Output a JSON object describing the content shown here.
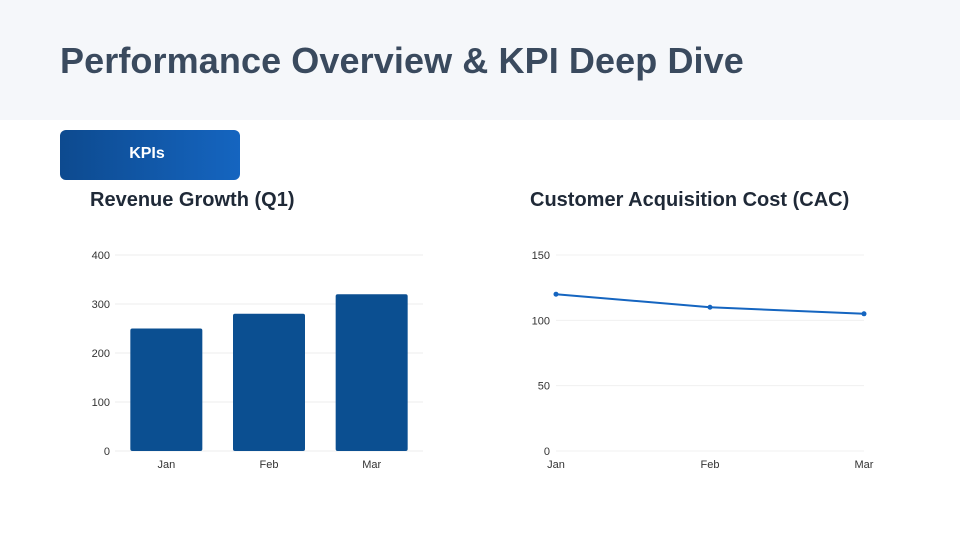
{
  "header": {
    "title": "Performance Overview & KPI Deep Dive"
  },
  "section": {
    "label": "KPIs"
  },
  "colors": {
    "primary": "#0b4f91",
    "line": "#1565c0",
    "header_bg": "#f5f7fa",
    "title_text": "#3a4a5e"
  },
  "chart_data": [
    {
      "type": "bar",
      "title": "Revenue Growth (Q1)",
      "categories": [
        "Jan",
        "Feb",
        "Mar"
      ],
      "values": [
        250,
        280,
        320
      ],
      "ylim": [
        0,
        400
      ],
      "yticks": [
        0,
        100,
        200,
        300,
        400
      ],
      "xlabel": "",
      "ylabel": "",
      "grid": true
    },
    {
      "type": "line",
      "title": "Customer Acquisition Cost (CAC)",
      "categories": [
        "Jan",
        "Feb",
        "Mar"
      ],
      "values": [
        120,
        110,
        105
      ],
      "ylim": [
        0,
        150
      ],
      "yticks": [
        0,
        50,
        100,
        150
      ],
      "xlabel": "",
      "ylabel": "",
      "grid": true
    }
  ]
}
